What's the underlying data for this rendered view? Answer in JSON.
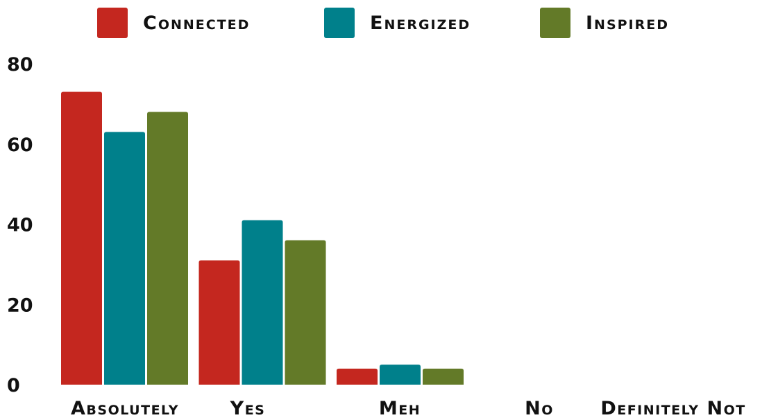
{
  "chart_data": {
    "type": "bar",
    "categories": [
      "Absolutely",
      "Yes",
      "Meh",
      "No",
      "Definitely Not"
    ],
    "series": [
      {
        "name": "Connected",
        "color": "#C4271F",
        "values": [
          73,
          31,
          4,
          0,
          0
        ]
      },
      {
        "name": "Energized",
        "color": "#00808B",
        "values": [
          63,
          41,
          5,
          0,
          0
        ]
      },
      {
        "name": "Inspired",
        "color": "#637A28",
        "values": [
          68,
          36,
          4,
          0,
          0
        ]
      }
    ],
    "yticks": [
      0,
      20,
      40,
      60,
      80
    ],
    "ylim": [
      0,
      80
    ],
    "grid": false,
    "legend_position": "top"
  }
}
